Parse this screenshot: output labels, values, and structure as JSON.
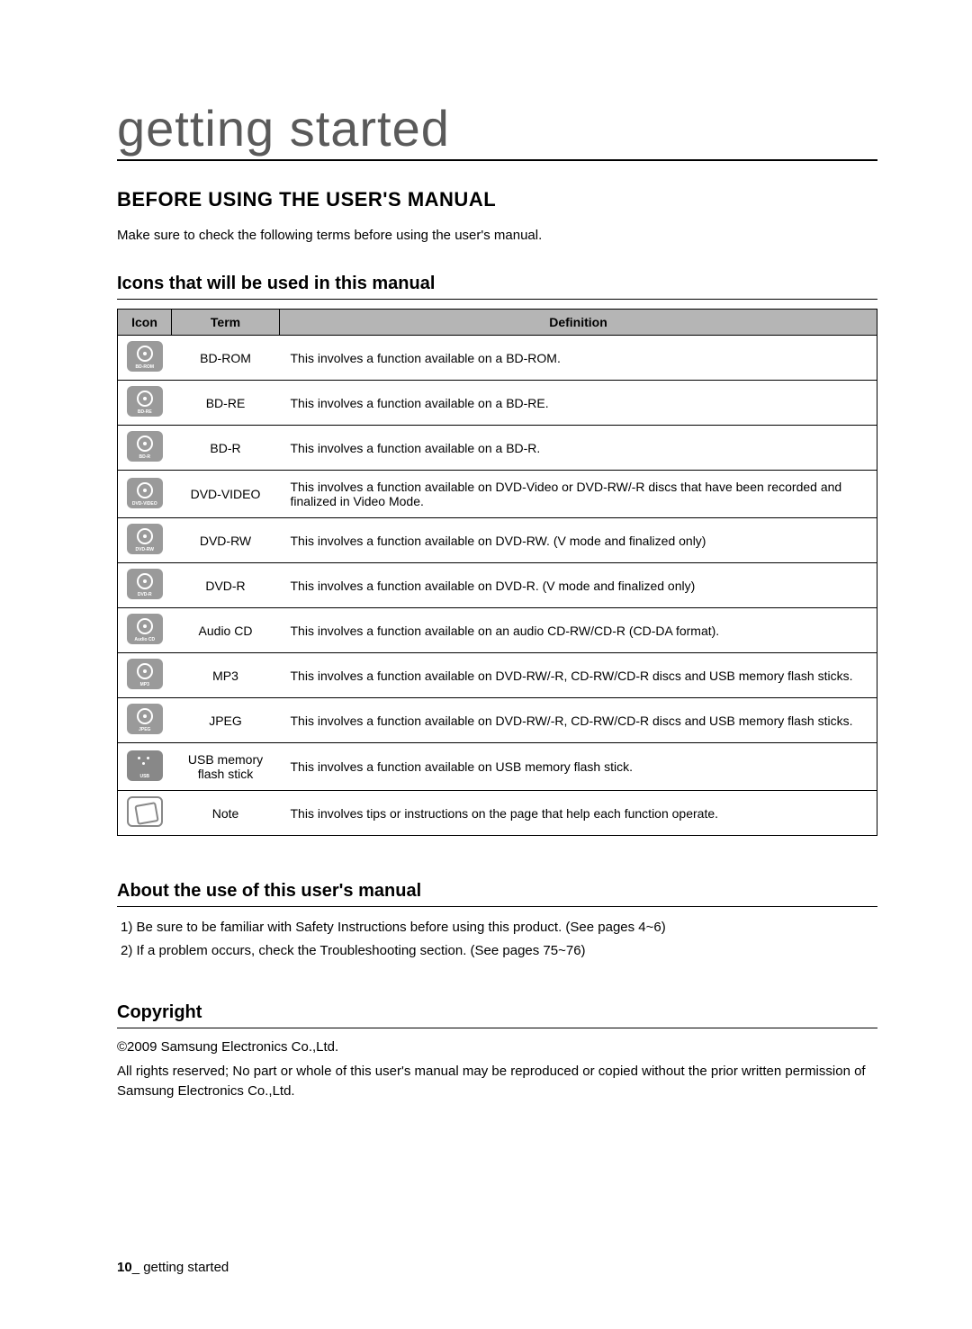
{
  "page": {
    "title": "getting started",
    "section_title": "BEFORE USING THE USER'S MANUAL",
    "intro": "Make sure to check the following terms before using the user's manual."
  },
  "icons_section": {
    "title": "Icons that will be used in this manual",
    "headers": {
      "icon": "Icon",
      "term": "Term",
      "definition": "Definition"
    },
    "rows": [
      {
        "icon_label": "BD-ROM",
        "icon_type": "disc",
        "term": "BD-ROM",
        "definition": "This involves a function available on a BD-ROM."
      },
      {
        "icon_label": "BD-RE",
        "icon_type": "disc",
        "term": "BD-RE",
        "definition": "This involves a function available on a BD-RE."
      },
      {
        "icon_label": "BD-R",
        "icon_type": "disc",
        "term": "BD-R",
        "definition": "This involves a function available on a BD-R."
      },
      {
        "icon_label": "DVD-VIDEO",
        "icon_type": "disc",
        "term": "DVD-VIDEO",
        "definition": "This involves a function available on DVD-Video or DVD-RW/-R discs that have been recorded and finalized in Video Mode."
      },
      {
        "icon_label": "DVD-RW",
        "icon_type": "disc",
        "term": "DVD-RW",
        "definition": "This involves a function available on DVD-RW. (V mode and finalized only)"
      },
      {
        "icon_label": "DVD-R",
        "icon_type": "disc",
        "term": "DVD-R",
        "definition": "This involves a function available on DVD-R. (V mode and finalized only)"
      },
      {
        "icon_label": "Audio CD",
        "icon_type": "disc",
        "term": "Audio CD",
        "definition": "This involves a function available on an audio CD-RW/CD-R (CD-DA format)."
      },
      {
        "icon_label": "MP3",
        "icon_type": "disc",
        "term": "MP3",
        "definition": "This involves a function available on DVD-RW/-R, CD-RW/CD-R discs and USB memory flash sticks."
      },
      {
        "icon_label": "JPEG",
        "icon_type": "disc",
        "term": "JPEG",
        "definition": "This involves a function available on DVD-RW/-R, CD-RW/CD-R discs and USB memory flash sticks."
      },
      {
        "icon_label": "USB",
        "icon_type": "usb",
        "term": "USB memory flash stick",
        "definition": "This involves a function available on USB memory flash stick."
      },
      {
        "icon_label": "",
        "icon_type": "note",
        "term": "Note",
        "definition": "This involves tips or instructions on the page that help each function operate."
      }
    ]
  },
  "about_section": {
    "title": "About the use of this user's manual",
    "items": [
      "1)  Be sure to be familiar with Safety Instructions before using this product. (See pages 4~6)",
      "2)  If a problem occurs, check the Troubleshooting section. (See pages 75~76)"
    ]
  },
  "copyright_section": {
    "title": "Copyright",
    "line1": "©2009 Samsung Electronics Co.,Ltd.",
    "line2": "All rights reserved; No part or whole of this user's manual may be reproduced or copied without the prior written permission of Samsung Electronics Co.,Ltd."
  },
  "footer": {
    "page_number": "10",
    "separator": "_ ",
    "label": "getting started"
  }
}
